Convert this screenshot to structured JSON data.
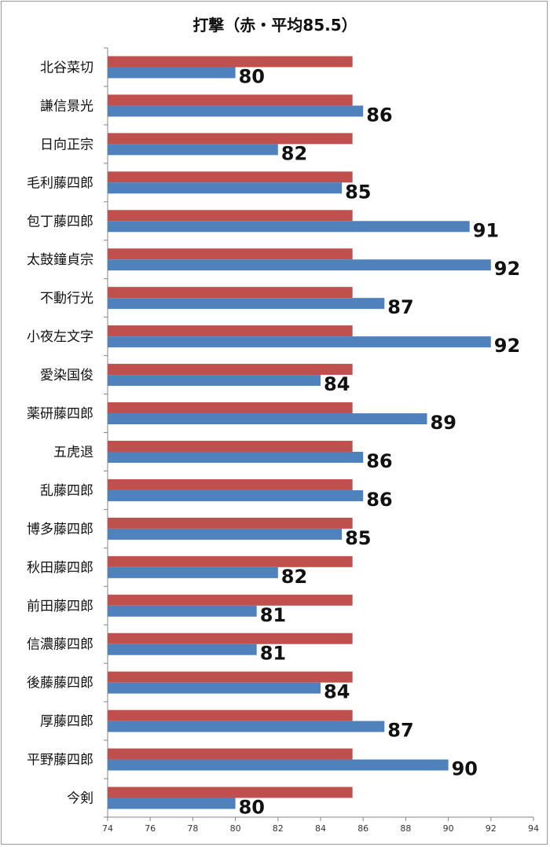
{
  "chart_data": {
    "type": "bar",
    "orientation": "horizontal",
    "title": "打撃（赤・平均85.5）",
    "xlim": [
      74,
      94
    ],
    "x_ticks": [
      74,
      76,
      78,
      80,
      82,
      84,
      86,
      88,
      90,
      92,
      94
    ],
    "grid": false,
    "colors": {
      "average": "#c0504d",
      "value": "#4f81bd"
    },
    "categories": [
      "北谷菜切",
      "謙信景光",
      "日向正宗",
      "毛利藤四郎",
      "包丁藤四郎",
      "太鼓鐘貞宗",
      "不動行光",
      "小夜左文字",
      "愛染国俊",
      "薬研藤四郎",
      "五虎退",
      "乱藤四郎",
      "博多藤四郎",
      "秋田藤四郎",
      "前田藤四郎",
      "信濃藤四郎",
      "後藤藤四郎",
      "厚藤四郎",
      "平野藤四郎",
      "今剣"
    ],
    "series": [
      {
        "values": [
          85.5,
          85.5,
          85.5,
          85.5,
          85.5,
          85.5,
          85.5,
          85.5,
          85.5,
          85.5,
          85.5,
          85.5,
          85.5,
          85.5,
          85.5,
          85.5,
          85.5,
          85.5,
          85.5,
          85.5
        ]
      },
      {
        "values": [
          80,
          86,
          82,
          85,
          91,
          92,
          87,
          92,
          84,
          89,
          86,
          86,
          85,
          82,
          81,
          81,
          84,
          87,
          90,
          80
        ]
      }
    ]
  }
}
